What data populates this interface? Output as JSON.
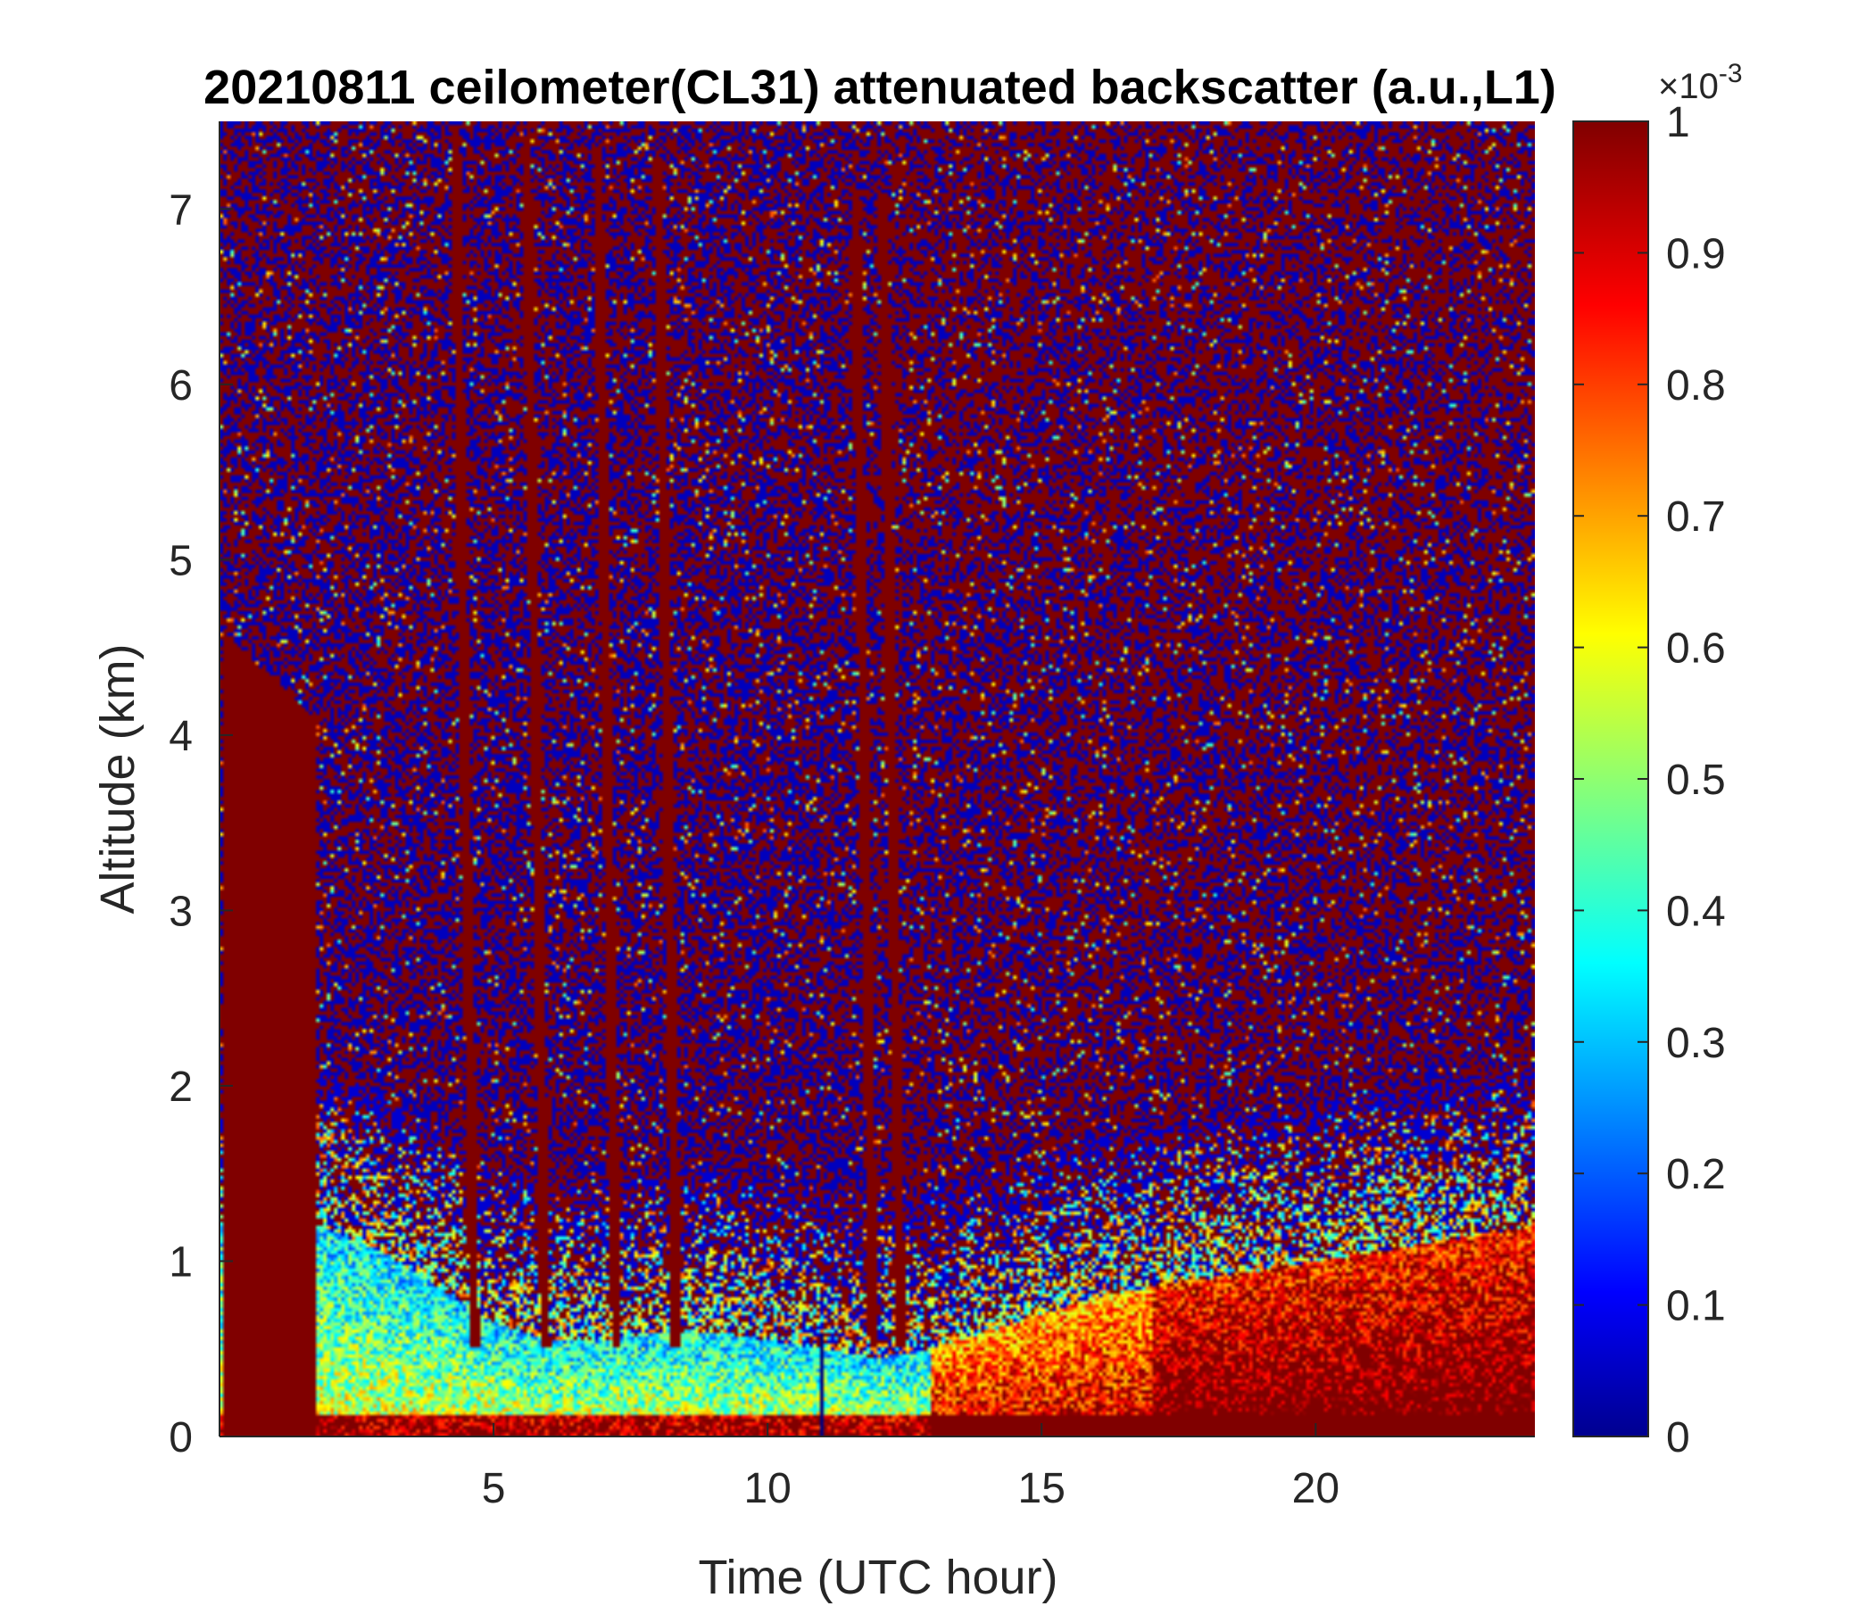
{
  "chart_data": {
    "type": "heatmap",
    "title": "20210811 ceilometer(CL31) attenuated backscatter (a.u.,L1)",
    "xlabel": "Time (UTC hour)",
    "ylabel": "Altitude (km)",
    "xlim": [
      0,
      24
    ],
    "ylim": [
      0,
      7.5
    ],
    "x_ticks": [
      5,
      10,
      15,
      20
    ],
    "y_ticks": [
      0,
      1,
      2,
      3,
      4,
      5,
      6,
      7
    ],
    "colorbar": {
      "colormap": "jet",
      "clim": [
        0,
        1
      ],
      "ticks": [
        0,
        0.1,
        0.2,
        0.3,
        0.4,
        0.5,
        0.6,
        0.7,
        0.8,
        0.9,
        1
      ],
      "exponent_label": "×10",
      "exponent": "-3"
    },
    "grid": false,
    "features": {
      "rain_saturated_columns_hours": [
        [
          0.05,
          1.75
        ]
      ],
      "falling_streaks_hours": [
        4.3,
        5.6,
        6.9,
        8.0,
        11.6,
        12.1
      ],
      "instrument_gap_hour": 11.0,
      "boundary_layer_top_km": {
        "hours": [
          1.8,
          3,
          4,
          5,
          6,
          7,
          8,
          9,
          10,
          11,
          12,
          13,
          14,
          15,
          16,
          18,
          20,
          22,
          24
        ],
        "values": [
          1.2,
          1.05,
          0.85,
          0.65,
          0.55,
          0.55,
          0.6,
          0.6,
          0.55,
          0.5,
          0.45,
          0.5,
          0.6,
          0.7,
          0.8,
          0.9,
          1.0,
          1.1,
          1.2
        ]
      }
    }
  }
}
